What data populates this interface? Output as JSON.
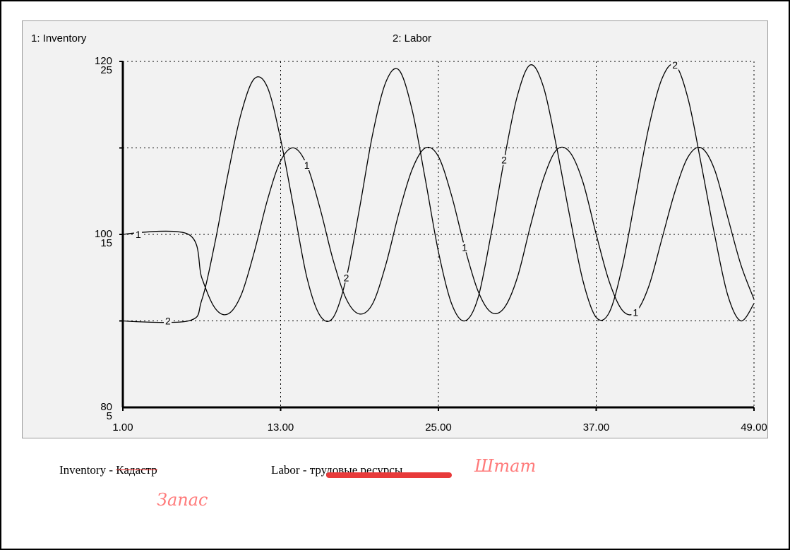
{
  "legend": {
    "series1": "1: Inventory",
    "series2": "2: Labor"
  },
  "colors": {
    "line": "#000000",
    "grid": "#000000",
    "background": "#f2f2f2",
    "handwriting": "#ff7a7a",
    "strike": "#e83a3a"
  },
  "notes": {
    "inventory_label": "Inventory - ",
    "inventory_struck": "Кадастр",
    "labor_label": "Labor - ",
    "labor_struck": "трудовые ресурсы",
    "handwritten_labor": "Штат",
    "handwritten_inventory": "Запас"
  },
  "chart_data": {
    "type": "line",
    "x_ticks": [
      "1.00",
      "13.00",
      "25.00",
      "37.00",
      "49.00"
    ],
    "xlim": [
      1,
      49
    ],
    "y_ticks_left": {
      "series1": [
        "120",
        "100",
        "80"
      ],
      "series2": [
        "25",
        "15",
        "5"
      ]
    },
    "ylim_series1": [
      80,
      120
    ],
    "ylim_series2": [
      5,
      25
    ],
    "grid": true,
    "series": [
      {
        "name": "Inventory",
        "marker": "1",
        "x": [
          1,
          6,
          7,
          8,
          9,
          10,
          11,
          12,
          13,
          14,
          15,
          16,
          17,
          18,
          19,
          20,
          21,
          22,
          23,
          24,
          25,
          26,
          27,
          28,
          29,
          30,
          31,
          32,
          33,
          34,
          35,
          36,
          37,
          38,
          39,
          40,
          41,
          42,
          43,
          44,
          45,
          46,
          47,
          48,
          49
        ],
        "values": [
          100,
          100,
          95,
          91.5,
          90.8,
          93,
          98,
          104,
          108.5,
          110,
          108,
          103,
          97,
          92.5,
          90.8,
          92,
          96.5,
          102.5,
          107.5,
          110,
          109,
          104.5,
          98.5,
          93.5,
          91,
          91.5,
          95,
          101,
          106.5,
          109.8,
          109.5,
          106,
          100,
          94.5,
          91.2,
          91,
          94,
          99.5,
          105,
          109,
          110,
          107.5,
          102,
          96.5,
          92.5
        ]
      },
      {
        "name": "Labor",
        "marker": "2",
        "x": [
          1,
          6,
          7,
          8,
          9,
          10,
          11,
          12,
          13,
          14,
          15,
          16,
          17,
          18,
          19,
          20,
          21,
          22,
          23,
          24,
          25,
          26,
          27,
          28,
          29,
          30,
          31,
          32,
          33,
          34,
          35,
          36,
          37,
          38,
          39,
          40,
          41,
          42,
          43,
          44,
          45,
          46,
          47,
          48,
          49
        ],
        "values": [
          10,
          10,
          11.2,
          14.5,
          18.5,
          22,
          24,
          23.5,
          20.5,
          16.5,
          12.5,
          10.3,
          10.2,
          12.5,
          16.5,
          20.8,
          23.8,
          24.5,
          22.2,
          18.2,
          14,
          11,
          10,
          11.3,
          15,
          19.3,
          23,
          24.8,
          23.5,
          20,
          16,
          12.3,
          10.2,
          10.5,
          13.2,
          17.2,
          21.2,
          24,
          24.8,
          22.8,
          19,
          15,
          11.5,
          10,
          11
        ]
      }
    ]
  }
}
